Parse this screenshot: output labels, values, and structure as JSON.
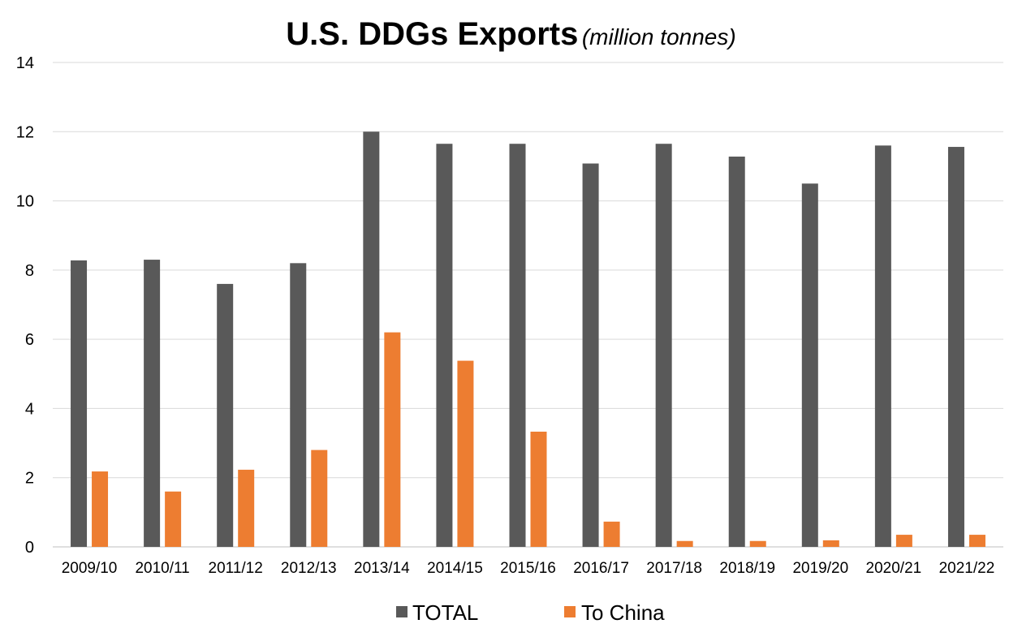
{
  "chart_data": {
    "type": "bar",
    "title": "U.S. DDGs Exports",
    "subtitle": "(million tonnes)",
    "xlabel": "",
    "ylabel": "",
    "ylim": [
      0,
      14
    ],
    "yticks": [
      0,
      2,
      4,
      6,
      8,
      10,
      12,
      14
    ],
    "grid": true,
    "legend_position": "bottom",
    "categories": [
      "2009/10",
      "2010/11",
      "2011/12",
      "2012/13",
      "2013/14",
      "2014/15",
      "2015/16",
      "2016/17",
      "2017/18",
      "2018/19",
      "2019/20",
      "2020/21",
      "2021/22"
    ],
    "series": [
      {
        "name": "TOTAL",
        "color": "#595959",
        "values": [
          8.28,
          8.3,
          7.6,
          8.2,
          12.0,
          11.65,
          11.65,
          11.08,
          11.65,
          11.28,
          10.5,
          11.6,
          11.56
        ]
      },
      {
        "name": "To China",
        "color": "#ED7D31",
        "values": [
          2.18,
          1.6,
          2.23,
          2.8,
          6.2,
          5.38,
          3.33,
          0.73,
          0.17,
          0.17,
          0.19,
          0.35,
          0.35
        ]
      }
    ]
  }
}
